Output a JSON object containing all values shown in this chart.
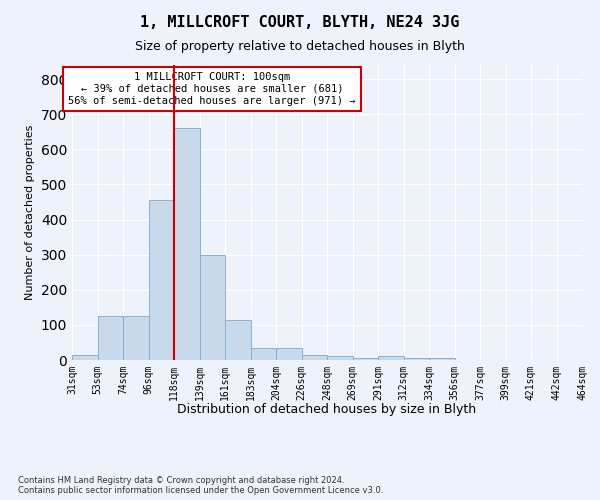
{
  "title": "1, MILLCROFT COURT, BLYTH, NE24 3JG",
  "subtitle": "Size of property relative to detached houses in Blyth",
  "xlabel": "Distribution of detached houses by size in Blyth",
  "ylabel": "Number of detached properties",
  "footnote": "Contains HM Land Registry data © Crown copyright and database right 2024.\nContains public sector information licensed under the Open Government Licence v3.0.",
  "bin_labels": [
    "31sqm",
    "53sqm",
    "74sqm",
    "96sqm",
    "118sqm",
    "139sqm",
    "161sqm",
    "183sqm",
    "204sqm",
    "226sqm",
    "248sqm",
    "269sqm",
    "291sqm",
    "312sqm",
    "334sqm",
    "356sqm",
    "377sqm",
    "399sqm",
    "421sqm",
    "442sqm",
    "464sqm"
  ],
  "bar_heights": [
    15,
    125,
    125,
    455,
    660,
    300,
    115,
    35,
    35,
    15,
    10,
    5,
    10,
    5,
    5,
    0,
    0,
    0,
    0,
    0
  ],
  "bar_color": "#c8d9ec",
  "bar_edge_color": "#8ab0d0",
  "vline_bin_index": 4,
  "vline_color": "#cc0000",
  "annotation_text": "1 MILLCROFT COURT: 100sqm\n← 39% of detached houses are smaller (681)\n56% of semi-detached houses are larger (971) →",
  "annotation_box_color": "#ffffff",
  "annotation_box_edge": "#cc0000",
  "ylim": [
    0,
    840
  ],
  "xlim_max": 20,
  "background_color": "#eef2fb",
  "grid_color": "#ffffff",
  "title_fontsize": 11,
  "subtitle_fontsize": 9,
  "ylabel_fontsize": 8,
  "xlabel_fontsize": 9,
  "annotation_fontsize": 7.5,
  "tick_fontsize": 7
}
